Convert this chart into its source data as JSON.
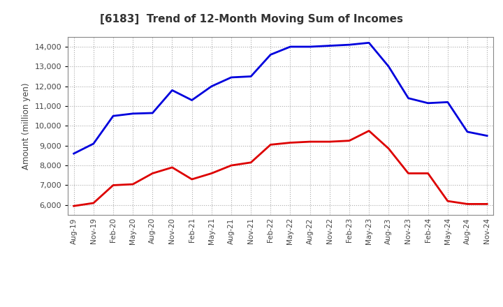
{
  "title": "[6183]  Trend of 12-Month Moving Sum of Incomes",
  "ylabel": "Amount (million yen)",
  "ylim": [
    5500,
    14500
  ],
  "yticks": [
    6000,
    7000,
    8000,
    9000,
    10000,
    11000,
    12000,
    13000,
    14000
  ],
  "background_color": "#ffffff",
  "grid_color": "#aaaaaa",
  "ordinary_income_color": "#0000dd",
  "net_income_color": "#dd0000",
  "line_width": 2.0,
  "x_labels": [
    "Aug-19",
    "Nov-19",
    "Feb-20",
    "May-20",
    "Aug-20",
    "Nov-20",
    "Feb-21",
    "May-21",
    "Aug-21",
    "Nov-21",
    "Feb-22",
    "May-22",
    "Aug-22",
    "Nov-22",
    "Feb-23",
    "May-23",
    "Aug-23",
    "Nov-23",
    "Feb-24",
    "May-24",
    "Aug-24",
    "Nov-24"
  ],
  "ordinary_income": [
    8600,
    9100,
    10500,
    10620,
    10650,
    11800,
    11300,
    12000,
    12450,
    12500,
    13600,
    14000,
    14000,
    14050,
    14100,
    14200,
    13000,
    11400,
    11150,
    11200,
    9700,
    9500
  ],
  "net_income": [
    5950,
    6100,
    7000,
    7050,
    7600,
    7900,
    7300,
    7600,
    8000,
    8150,
    9050,
    9150,
    9200,
    9200,
    9250,
    9750,
    8850,
    7600,
    7600,
    6200,
    6050,
    6050
  ],
  "title_color": "#333333",
  "tick_label_color": "#444444",
  "axis_label_color": "#444444"
}
